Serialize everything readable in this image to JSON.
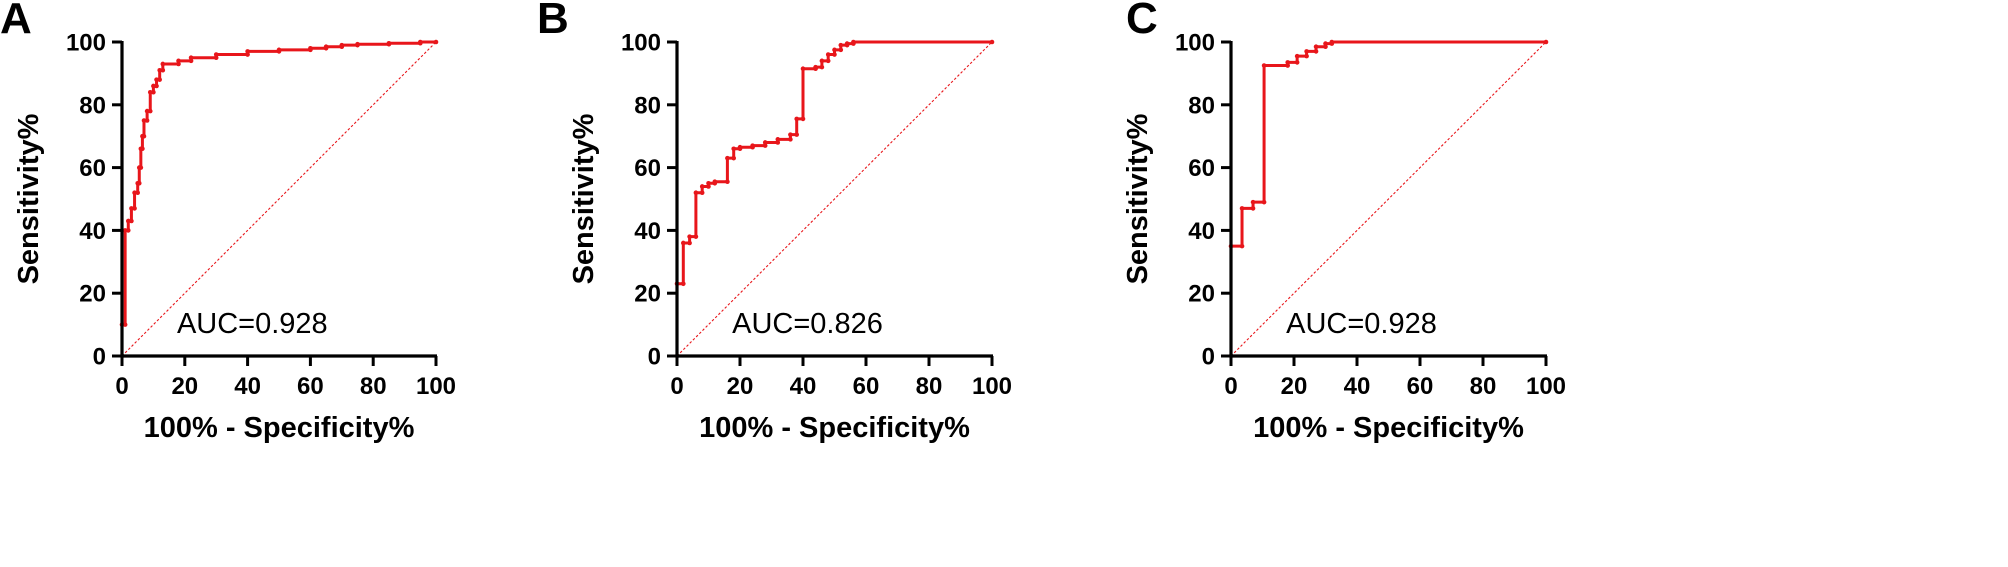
{
  "chart_data": [
    {
      "type": "line",
      "panel": "A",
      "xlabel": "100% - Specificity%",
      "ylabel": "Sensitivity%",
      "xlim": [
        0,
        100
      ],
      "ylim": [
        0,
        100
      ],
      "xticks": [
        0,
        20,
        40,
        60,
        80,
        100
      ],
      "yticks": [
        0,
        20,
        40,
        60,
        80,
        100
      ],
      "annotation": "AUC=0.928",
      "colors": {
        "curve": "#e8161b",
        "reference": "#e8161b",
        "axis": "#000000"
      },
      "series": [
        {
          "name": "ROC",
          "x": [
            0,
            0,
            1,
            1,
            2,
            2,
            3,
            3,
            4,
            4,
            5,
            5,
            5.5,
            5.5,
            6,
            6,
            6.5,
            6.5,
            7,
            7,
            8,
            8,
            9,
            9,
            10,
            10,
            11,
            11,
            12,
            12,
            13,
            13,
            18,
            18,
            22,
            22,
            30,
            30,
            40,
            40,
            50,
            50,
            60,
            60,
            65,
            65,
            70,
            70,
            75,
            75,
            85,
            85,
            95,
            95,
            100
          ],
          "y": [
            0,
            10,
            10,
            40,
            40,
            43,
            43,
            47,
            47,
            52,
            52,
            55,
            55,
            60,
            60,
            66,
            66,
            70,
            70,
            75,
            75,
            78,
            78,
            84,
            84,
            86,
            86,
            88,
            88,
            91,
            91,
            93,
            93,
            94,
            94,
            95,
            95,
            96,
            96,
            97,
            97,
            97.5,
            97.5,
            98,
            98,
            98.5,
            98.5,
            99,
            99,
            99.3,
            99.3,
            99.6,
            99.6,
            100,
            100
          ]
        }
      ]
    },
    {
      "type": "line",
      "panel": "B",
      "xlabel": "100% - Specificity%",
      "ylabel": "Sensitivity%",
      "xlim": [
        0,
        100
      ],
      "ylim": [
        0,
        100
      ],
      "xticks": [
        0,
        20,
        40,
        60,
        80,
        100
      ],
      "yticks": [
        0,
        20,
        40,
        60,
        80,
        100
      ],
      "annotation": "AUC=0.826",
      "colors": {
        "curve": "#e8161b",
        "reference": "#e8161b",
        "axis": "#000000"
      },
      "series": [
        {
          "name": "ROC",
          "x": [
            0,
            0,
            2,
            2,
            4,
            4,
            6,
            6,
            8,
            8,
            10,
            10,
            12,
            12,
            16,
            16,
            18,
            18,
            20,
            20,
            24,
            24,
            28,
            28,
            32,
            32,
            36,
            36,
            38,
            38,
            40,
            40,
            44,
            44,
            46,
            46,
            48,
            48,
            50,
            50,
            52,
            52,
            54,
            54,
            56,
            56,
            100
          ],
          "y": [
            0,
            23,
            23,
            36,
            36,
            38,
            38,
            52,
            52,
            54,
            54,
            55,
            55,
            55.5,
            55.5,
            63,
            63,
            66,
            66,
            66.5,
            66.5,
            67,
            67,
            68,
            68,
            69,
            69,
            70.5,
            70.5,
            75.5,
            75.5,
            91.5,
            91.5,
            92,
            92,
            94,
            94,
            96,
            96,
            97.5,
            97.5,
            99,
            99,
            99.5,
            99.5,
            100,
            100
          ]
        }
      ]
    },
    {
      "type": "line",
      "panel": "C",
      "xlabel": "100% - Specificity%",
      "ylabel": "Sensitivity%",
      "xlim": [
        0,
        100
      ],
      "ylim": [
        0,
        100
      ],
      "xticks": [
        0,
        20,
        40,
        60,
        80,
        100
      ],
      "yticks": [
        0,
        20,
        40,
        60,
        80,
        100
      ],
      "annotation": "AUC=0.928",
      "colors": {
        "curve": "#e8161b",
        "reference": "#e8161b",
        "axis": "#000000"
      },
      "series": [
        {
          "name": "ROC",
          "x": [
            0,
            0,
            3.5,
            3.5,
            7,
            7,
            10.5,
            10.5,
            18,
            18,
            21,
            21,
            24,
            24,
            27,
            27,
            30,
            30,
            32,
            32,
            100
          ],
          "y": [
            0,
            35,
            35,
            47,
            47,
            49,
            49,
            92.5,
            92.5,
            93.5,
            93.5,
            95.5,
            95.5,
            97,
            97,
            98.5,
            98.5,
            99.5,
            99.5,
            100,
            100
          ]
        }
      ]
    }
  ]
}
